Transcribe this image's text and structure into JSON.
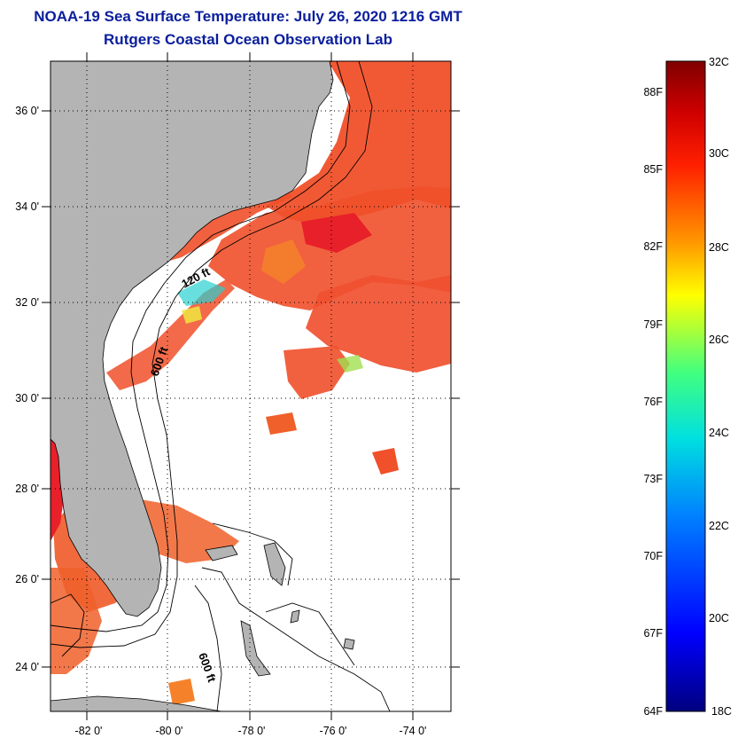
{
  "title": {
    "line1": "NOAA-19 Sea Surface Temperature:  July 26, 2020 1216 GMT",
    "line2": "Rutgers Coastal Ocean Observation Lab"
  },
  "map": {
    "lat_labels": [
      "36 0'",
      "34 0'",
      "32 0'",
      "30 0'",
      "28 0'",
      "26 0'",
      "24 0'"
    ],
    "lon_labels": [
      "-82 0'",
      "-80 0'",
      "-78 0'",
      "-76 0'",
      "-74 0'"
    ],
    "contour_labels": [
      "120 ft",
      "600 ft",
      "600 ft"
    ],
    "colors": {
      "land": "#b4b4b4",
      "warm": "#f0502a",
      "hot": "#e8202a",
      "orange": "#f5822a",
      "cool": "#2ad0d0",
      "yellow": "#f0e640"
    }
  },
  "colorbar": {
    "celsius_labels": [
      "32C",
      "30C",
      "28C",
      "26C",
      "24C",
      "22C",
      "20C",
      "18C"
    ],
    "fahrenheit_labels": [
      "88F",
      "85F",
      "82F",
      "79F",
      "76F",
      "73F",
      "70F",
      "67F",
      "64F"
    ],
    "range_celsius": [
      18,
      32
    ]
  }
}
